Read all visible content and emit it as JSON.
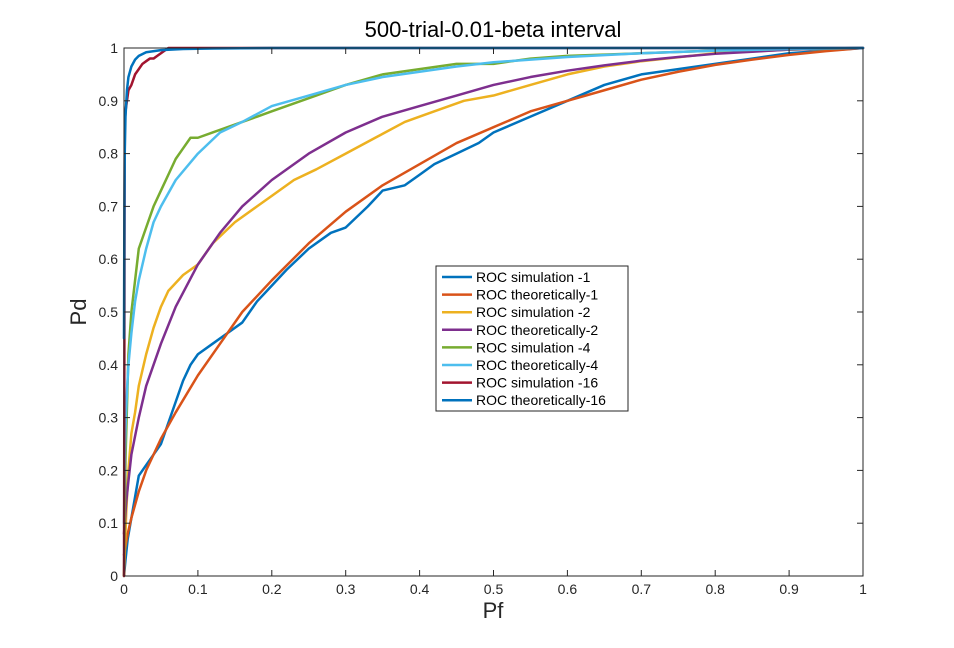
{
  "chart_data": {
    "type": "line",
    "title": "500-trial-0.01-beta interval",
    "xlabel": "Pf",
    "ylabel": "Pd",
    "xlim": [
      0,
      1
    ],
    "ylim": [
      0,
      1
    ],
    "xticks": [
      "0",
      "0.1",
      "0.2",
      "0.3",
      "0.4",
      "0.5",
      "0.6",
      "0.7",
      "0.8",
      "0.9",
      "1"
    ],
    "yticks": [
      "0",
      "0.1",
      "0.2",
      "0.3",
      "0.4",
      "0.5",
      "0.6",
      "0.7",
      "0.8",
      "0.9",
      "1"
    ],
    "grid": false,
    "legend_position": "center",
    "series": [
      {
        "name": "ROC simulation   -1",
        "color": "#0072bd",
        "x": [
          0,
          0.002,
          0.005,
          0.01,
          0.015,
          0.02,
          0.03,
          0.04,
          0.05,
          0.06,
          0.07,
          0.08,
          0.09,
          0.1,
          0.12,
          0.14,
          0.16,
          0.18,
          0.2,
          0.22,
          0.25,
          0.28,
          0.3,
          0.33,
          0.35,
          0.38,
          0.4,
          0.42,
          0.45,
          0.48,
          0.5,
          0.55,
          0.6,
          0.65,
          0.7,
          0.75,
          0.8,
          0.85,
          0.9,
          0.95,
          1
        ],
        "y": [
          0,
          0.03,
          0.07,
          0.11,
          0.15,
          0.19,
          0.21,
          0.23,
          0.25,
          0.29,
          0.33,
          0.37,
          0.4,
          0.42,
          0.44,
          0.46,
          0.48,
          0.52,
          0.55,
          0.58,
          0.62,
          0.65,
          0.66,
          0.7,
          0.73,
          0.74,
          0.76,
          0.78,
          0.8,
          0.82,
          0.84,
          0.87,
          0.9,
          0.93,
          0.95,
          0.96,
          0.97,
          0.98,
          0.99,
          0.995,
          1
        ]
      },
      {
        "name": "ROC theoretically-1",
        "color": "#d95319",
        "x": [
          0,
          0.005,
          0.01,
          0.02,
          0.03,
          0.05,
          0.07,
          0.1,
          0.13,
          0.16,
          0.2,
          0.25,
          0.3,
          0.35,
          0.4,
          0.45,
          0.5,
          0.55,
          0.6,
          0.65,
          0.7,
          0.75,
          0.8,
          0.85,
          0.9,
          0.95,
          1
        ],
        "y": [
          0.04,
          0.08,
          0.11,
          0.16,
          0.2,
          0.26,
          0.31,
          0.38,
          0.44,
          0.5,
          0.56,
          0.63,
          0.69,
          0.74,
          0.78,
          0.82,
          0.85,
          0.88,
          0.9,
          0.92,
          0.94,
          0.955,
          0.968,
          0.978,
          0.987,
          0.994,
          1
        ]
      },
      {
        "name": "ROC simulation   -2",
        "color": "#edb120",
        "x": [
          0,
          0.003,
          0.006,
          0.01,
          0.015,
          0.02,
          0.03,
          0.04,
          0.05,
          0.06,
          0.08,
          0.1,
          0.12,
          0.15,
          0.18,
          0.2,
          0.23,
          0.26,
          0.3,
          0.34,
          0.38,
          0.42,
          0.46,
          0.5,
          0.55,
          0.6,
          0.65,
          0.7,
          0.8,
          0.9,
          1
        ],
        "y": [
          0,
          0.12,
          0.2,
          0.27,
          0.31,
          0.36,
          0.42,
          0.47,
          0.51,
          0.54,
          0.57,
          0.59,
          0.63,
          0.67,
          0.7,
          0.72,
          0.75,
          0.77,
          0.8,
          0.83,
          0.86,
          0.88,
          0.9,
          0.91,
          0.93,
          0.95,
          0.965,
          0.975,
          0.99,
          0.997,
          1
        ]
      },
      {
        "name": "ROC theoretically-2",
        "color": "#7e2f8e",
        "x": [
          0,
          0.003,
          0.006,
          0.01,
          0.02,
          0.03,
          0.05,
          0.07,
          0.1,
          0.13,
          0.16,
          0.2,
          0.25,
          0.3,
          0.35,
          0.4,
          0.45,
          0.5,
          0.55,
          0.6,
          0.65,
          0.7,
          0.75,
          0.8,
          0.85,
          0.9,
          0.95,
          1
        ],
        "y": [
          0.08,
          0.14,
          0.18,
          0.23,
          0.3,
          0.36,
          0.44,
          0.51,
          0.59,
          0.65,
          0.7,
          0.75,
          0.8,
          0.84,
          0.87,
          0.89,
          0.91,
          0.93,
          0.945,
          0.957,
          0.967,
          0.976,
          0.983,
          0.989,
          0.993,
          0.997,
          0.999,
          1
        ]
      },
      {
        "name": "ROC simulation   -4",
        "color": "#77ac30",
        "x": [
          0,
          0.002,
          0.004,
          0.006,
          0.01,
          0.015,
          0.02,
          0.03,
          0.04,
          0.05,
          0.06,
          0.07,
          0.08,
          0.09,
          0.1,
          0.12,
          0.14,
          0.16,
          0.18,
          0.2,
          0.22,
          0.24,
          0.26,
          0.3,
          0.35,
          0.4,
          0.45,
          0.5,
          0.55,
          0.6,
          0.7,
          0.8,
          0.9,
          1
        ],
        "y": [
          0,
          0.22,
          0.32,
          0.42,
          0.5,
          0.56,
          0.62,
          0.66,
          0.7,
          0.73,
          0.76,
          0.79,
          0.81,
          0.83,
          0.83,
          0.84,
          0.85,
          0.86,
          0.87,
          0.88,
          0.89,
          0.9,
          0.91,
          0.93,
          0.95,
          0.96,
          0.97,
          0.97,
          0.98,
          0.985,
          0.99,
          0.995,
          0.998,
          1
        ]
      },
      {
        "name": "ROC theoretically-4",
        "color": "#4dbeee",
        "x": [
          0,
          0.001,
          0.002,
          0.004,
          0.006,
          0.01,
          0.015,
          0.02,
          0.03,
          0.04,
          0.05,
          0.07,
          0.1,
          0.13,
          0.16,
          0.2,
          0.25,
          0.3,
          0.35,
          0.4,
          0.45,
          0.5,
          0.6,
          0.7,
          0.8,
          0.9,
          1
        ],
        "y": [
          0.1,
          0.22,
          0.28,
          0.35,
          0.4,
          0.46,
          0.52,
          0.56,
          0.62,
          0.67,
          0.7,
          0.75,
          0.8,
          0.84,
          0.86,
          0.89,
          0.91,
          0.93,
          0.945,
          0.955,
          0.965,
          0.973,
          0.983,
          0.99,
          0.995,
          0.998,
          1
        ]
      },
      {
        "name": "ROC simulation   -16",
        "color": "#a2142f",
        "x": [
          0,
          0.001,
          0.002,
          0.004,
          0.006,
          0.01,
          0.015,
          0.02,
          0.025,
          0.03,
          0.035,
          0.04,
          0.045,
          0.05,
          0.055,
          0.06,
          0.08,
          0.1,
          0.2,
          0.4,
          0.7,
          1
        ],
        "y": [
          0,
          0.85,
          0.88,
          0.9,
          0.92,
          0.93,
          0.95,
          0.96,
          0.97,
          0.975,
          0.98,
          0.98,
          0.985,
          0.99,
          0.995,
          1,
          1,
          1,
          1,
          1,
          1,
          1
        ]
      },
      {
        "name": "ROC theoretically-16",
        "color": "#0072bd",
        "x": [
          0,
          0.0005,
          0.001,
          0.002,
          0.004,
          0.006,
          0.01,
          0.015,
          0.02,
          0.03,
          0.05,
          0.08,
          0.12,
          0.2,
          0.4,
          0.7,
          1
        ],
        "y": [
          0.45,
          0.7,
          0.8,
          0.87,
          0.92,
          0.945,
          0.965,
          0.978,
          0.985,
          0.992,
          0.996,
          0.998,
          0.999,
          1,
          1,
          1,
          1
        ]
      }
    ]
  }
}
